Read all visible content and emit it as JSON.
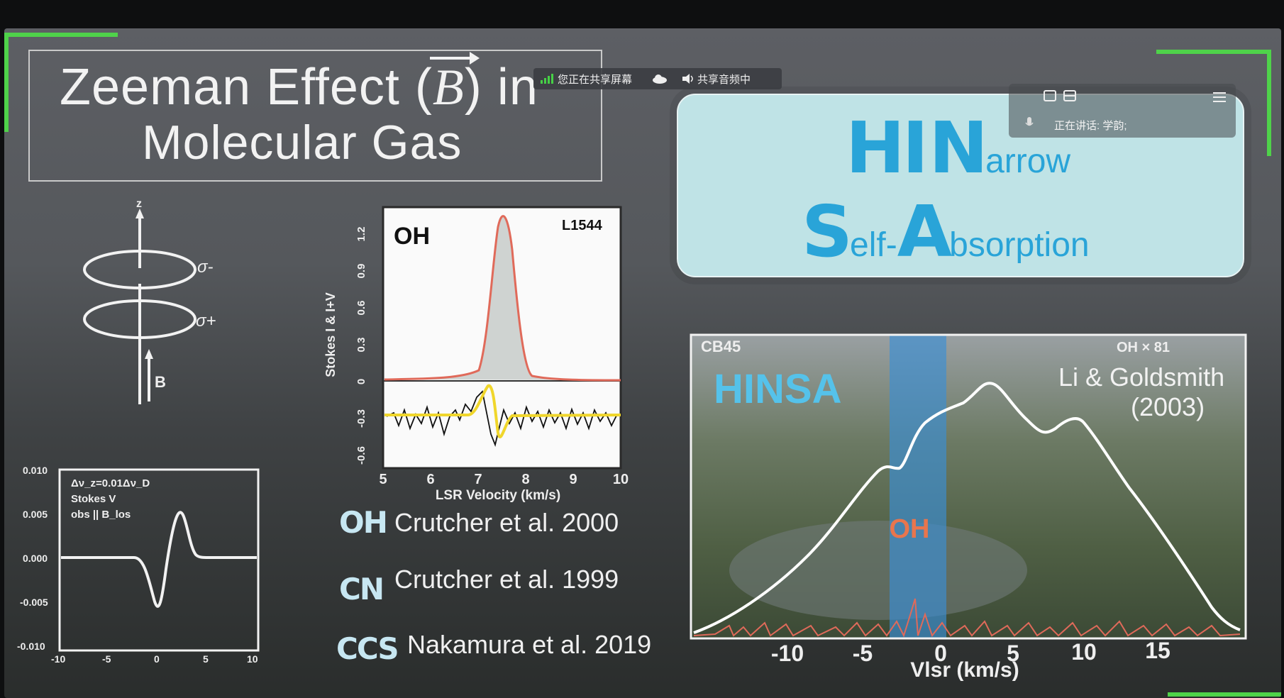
{
  "title": {
    "line1_pre": "Zeeman Effect (",
    "vec_symbol": "B",
    "line1_post": ") in",
    "line2": "Molecular Gas"
  },
  "share_bar": {
    "sharing_screen": "您正在共享屏幕",
    "sharing_audio": "共享音频中",
    "speaking": "正在讲话: 学韵;"
  },
  "hinsa_banner": {
    "h": "HI",
    "n": "N",
    "n_rest": "arrow",
    "s": "S",
    "s_rest": "elf-",
    "a": "A",
    "a_rest": "bsorption"
  },
  "zeeman_diagram": {
    "z_label": "z",
    "sigma_minus": "σ-",
    "sigma_plus": "σ+",
    "b_label": "B"
  },
  "stokes_panel": {
    "annotation_1": "Δν_z=0.01Δν_D",
    "annotation_2": "Stokes V",
    "annotation_3": "obs || B_los",
    "y_ticks": [
      "0.010",
      "0.005",
      "0.000",
      "-0.005",
      "-0.010"
    ],
    "x_ticks": [
      "-10",
      "-5",
      "0",
      "5",
      "10"
    ]
  },
  "oh_plot": {
    "species": "OH",
    "source": "L1544",
    "y_label": "Stokes I & I+V",
    "y_ticks": [
      "1.2",
      "0.9",
      "0.6",
      "0.3",
      "0",
      "-0.3",
      "-0.6"
    ],
    "x_ticks": [
      "5",
      "6",
      "7",
      "8",
      "9",
      "10"
    ],
    "x_label": "LSR Velocity (km/s)"
  },
  "references": [
    {
      "molecule": "OH",
      "citation": "Crutcher et al. 2000"
    },
    {
      "molecule": "CN",
      "citation": "Crutcher et al. 1999"
    },
    {
      "molecule": "CCS",
      "citation": "Nakamura et al. 2019"
    }
  ],
  "hinsa_plot": {
    "source": "CB45",
    "scale_label": "OH × 81",
    "panel_title": "HINSA",
    "credit_1": "Li & Goldsmith",
    "credit_2": "(2003)",
    "oh_label": "OH",
    "x_ticks": [
      "-10",
      "-5",
      "0",
      "5",
      "10",
      "15"
    ],
    "x_label": "Vlsr (km/s)"
  },
  "colors": {
    "accent_green": "#4fd24a",
    "hinsa_blue": "#29a4d8",
    "oh_yellow": "#f0d62b",
    "oh_red": "#e06a5a",
    "hinsa_band": "#3b8fd6"
  }
}
